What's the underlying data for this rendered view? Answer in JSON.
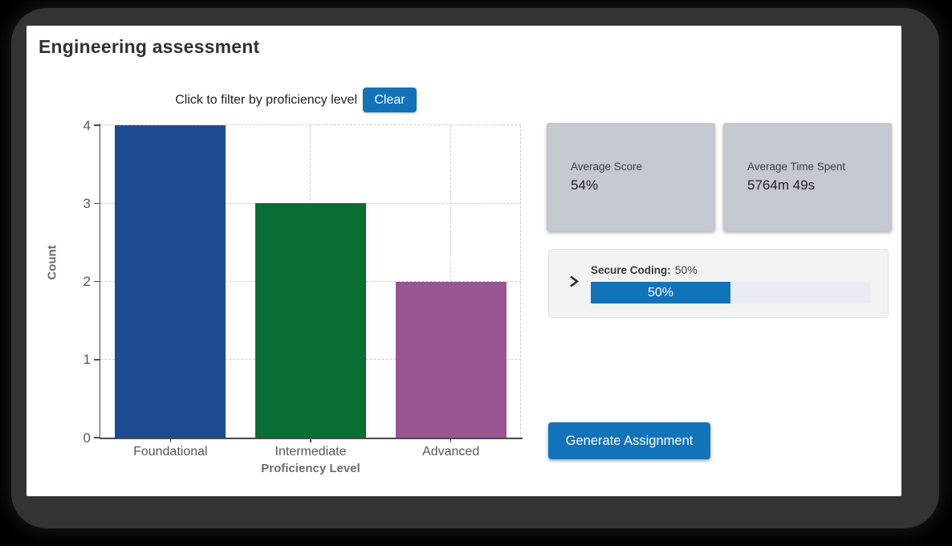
{
  "window": {
    "frame_color": "#333333"
  },
  "header": {
    "title": "Engineering assessment"
  },
  "filter_bar": {
    "hint": "Click to filter by proficiency level",
    "clear_button": "Clear"
  },
  "chart_data": {
    "type": "bar",
    "title": "",
    "categories": [
      "Foundational",
      "Intermediate",
      "Advanced"
    ],
    "values": [
      4,
      3,
      2
    ],
    "bar_colors": [
      "#1d4b92",
      "#086e33",
      "#995492"
    ],
    "xlabel": "Proficiency Level",
    "ylabel": "Count",
    "ylim": [
      0,
      4
    ],
    "yticks": [
      0,
      1,
      2,
      3,
      4
    ],
    "grid": true,
    "grid_style": "dashed",
    "legend": "none"
  },
  "stats_cards": [
    {
      "label": "Average Score",
      "value": "54%"
    },
    {
      "label": "Average Time Spent",
      "value": "5764m 49s"
    }
  ],
  "skill_progress": {
    "skill": "Secure Coding:",
    "value_text": "50%",
    "percent": 50,
    "bar_label": "50%",
    "chevron_icon": "chevron-right"
  },
  "actions": {
    "generate_button": "Generate Assignment"
  },
  "colors": {
    "accent_blue": "#1173b9",
    "card_bg": "#c4c8cf",
    "panel_bg": "#f2f2f3",
    "frame": "#333333"
  }
}
